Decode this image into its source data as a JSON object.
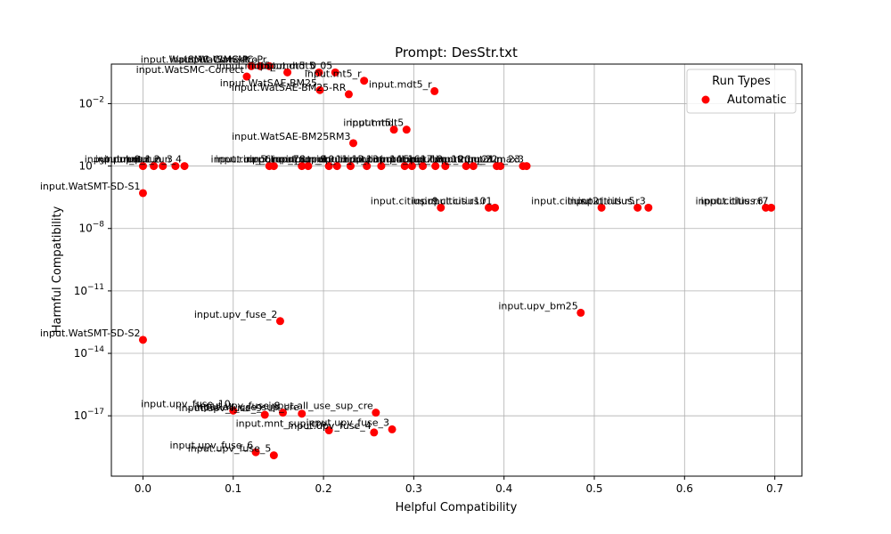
{
  "chart_data": {
    "type": "scatter",
    "title": "Prompt: DesStr.txt",
    "xlabel": "Helpful Compatibility",
    "ylabel": "Harmful Compatibility",
    "yscale": "log",
    "xlim": [
      -0.035,
      0.73
    ],
    "ylim_exp": [
      -19.9,
      -0.1
    ],
    "grid": true,
    "legend": {
      "title": "Run Types",
      "location": "top-right",
      "entries": [
        {
          "name": "Automatic",
          "color": "#ff0000"
        }
      ]
    },
    "colors": {
      "marker": "#ff0000",
      "grid": "#b0b0b0"
    },
    "x_ticks": [
      {
        "value": 0.0,
        "label": "0.0"
      },
      {
        "value": 0.1,
        "label": "0.1"
      },
      {
        "value": 0.2,
        "label": "0.2"
      },
      {
        "value": 0.3,
        "label": "0.3"
      },
      {
        "value": 0.4,
        "label": "0.4"
      },
      {
        "value": 0.5,
        "label": "0.5"
      },
      {
        "value": 0.6,
        "label": "0.6"
      },
      {
        "value": 0.7,
        "label": "0.7"
      }
    ],
    "y_ticks": [
      {
        "exp": -2,
        "base": "10",
        "sup": "−2"
      },
      {
        "exp": -5,
        "base": "10",
        "sup": "−5"
      },
      {
        "exp": -8,
        "base": "10",
        "sup": "−8"
      },
      {
        "exp": -11,
        "base": "10",
        "sup": "−11"
      },
      {
        "exp": -14,
        "base": "10",
        "sup": "−14"
      },
      {
        "exp": -17,
        "base": "10",
        "sup": "−17"
      }
    ],
    "points": [
      {
        "x": 0.12,
        "exp": -0.2,
        "label": "input.WatSMC-Correct"
      },
      {
        "x": 0.13,
        "exp": -0.2,
        "label": "input.WatSMC-Pro"
      },
      {
        "x": 0.14,
        "exp": -0.2,
        "label": "input.WatSMC-Pr"
      },
      {
        "x": 0.115,
        "exp": -0.7,
        "label": "input.WatSMC-Correct"
      },
      {
        "x": 0.16,
        "exp": -0.5,
        "label": "input.mdt5_..."
      },
      {
        "x": 0.195,
        "exp": -0.5,
        "label": "input.mdt5_0"
      },
      {
        "x": 0.213,
        "exp": -0.5,
        "label": "input.mdt5_05"
      },
      {
        "x": 0.245,
        "exp": -0.9,
        "label": "input.mt5_r"
      },
      {
        "x": 0.196,
        "exp": -1.35,
        "label": "input.WatSAE-BM25"
      },
      {
        "x": 0.228,
        "exp": -1.55,
        "label": "input.WatSAE-BM25-RR"
      },
      {
        "x": 0.323,
        "exp": -1.4,
        "label": "input.mdt5_r"
      },
      {
        "x": 0.278,
        "exp": -3.25,
        "label": "input.mt5"
      },
      {
        "x": 0.292,
        "exp": -3.25,
        "label": "input.mdt5"
      },
      {
        "x": 0.233,
        "exp": -3.9,
        "label": "input.WatSAE-BM25RM3"
      },
      {
        "x": 0.0,
        "exp": -5.0,
        "label": "input.run_0"
      },
      {
        "x": 0.012,
        "exp": -5.0,
        "label": "input.run_1"
      },
      {
        "x": 0.022,
        "exp": -5.0,
        "label": "input.run_2"
      },
      {
        "x": 0.036,
        "exp": -5.0,
        "label": "input.run_3"
      },
      {
        "x": 0.046,
        "exp": -5.0,
        "label": "input.run_4"
      },
      {
        "x": 0.14,
        "exp": -5.0,
        "label": "input.run_5"
      },
      {
        "x": 0.145,
        "exp": -5.0,
        "label": "input.run_6"
      },
      {
        "x": 0.176,
        "exp": -5.0,
        "label": "input.run_7"
      },
      {
        "x": 0.183,
        "exp": -5.0,
        "label": "input.run_8"
      },
      {
        "x": 0.206,
        "exp": -5.0,
        "label": "input.run_9"
      },
      {
        "x": 0.215,
        "exp": -5.0,
        "label": "input.run_10"
      },
      {
        "x": 0.23,
        "exp": -5.0,
        "label": "input.run_11"
      },
      {
        "x": 0.248,
        "exp": -5.0,
        "label": "input.run_12"
      },
      {
        "x": 0.264,
        "exp": -5.0,
        "label": "input.run_13"
      },
      {
        "x": 0.29,
        "exp": -5.0,
        "label": "input.run_14"
      },
      {
        "x": 0.298,
        "exp": -5.0,
        "label": "input.run_15"
      },
      {
        "x": 0.31,
        "exp": -5.0,
        "label": "input.run_16"
      },
      {
        "x": 0.324,
        "exp": -5.0,
        "label": "input.run_17"
      },
      {
        "x": 0.335,
        "exp": -5.0,
        "label": "input.run_18"
      },
      {
        "x": 0.358,
        "exp": -5.0,
        "label": "input.run_19"
      },
      {
        "x": 0.366,
        "exp": -5.0,
        "label": "input.run_20"
      },
      {
        "x": 0.392,
        "exp": -5.0,
        "label": "input.run_21"
      },
      {
        "x": 0.396,
        "exp": -5.0,
        "label": "input.run_22"
      },
      {
        "x": 0.421,
        "exp": -5.0,
        "label": "input.run_23"
      },
      {
        "x": 0.425,
        "exp": -5.0,
        "label": "input.max3"
      },
      {
        "x": 0.0,
        "exp": -6.3,
        "label": "input.WatSMT-SD-S1"
      },
      {
        "x": 0.33,
        "exp": -7.0,
        "label": "input.citius.r9"
      },
      {
        "x": 0.383,
        "exp": -7.0,
        "label": "input.citius.r10"
      },
      {
        "x": 0.39,
        "exp": -7.0,
        "label": "input.citius.r1"
      },
      {
        "x": 0.508,
        "exp": -7.0,
        "label": "input.citius.r2"
      },
      {
        "x": 0.548,
        "exp": -7.0,
        "label": "input.citius.r5"
      },
      {
        "x": 0.56,
        "exp": -7.0,
        "label": "input.citius.r3"
      },
      {
        "x": 0.69,
        "exp": -7.0,
        "label": "input.citius.r6"
      },
      {
        "x": 0.696,
        "exp": -7.0,
        "label": "input.citius.r7"
      },
      {
        "x": 0.152,
        "exp": -12.45,
        "label": "input.upv_fuse_2"
      },
      {
        "x": 0.485,
        "exp": -12.05,
        "label": "input.upv_bm25"
      },
      {
        "x": 0.0,
        "exp": -13.35,
        "label": "input.WatSMT-SD-S2"
      },
      {
        "x": 0.1,
        "exp": -16.75,
        "label": "input.upv_fuse_10"
      },
      {
        "x": 0.135,
        "exp": -16.95,
        "label": "input.upv_fuse_9"
      },
      {
        "x": 0.155,
        "exp": -16.85,
        "label": "input.upv_fuse_8"
      },
      {
        "x": 0.176,
        "exp": -16.9,
        "label": "input.all_use_sup_cre"
      },
      {
        "x": 0.258,
        "exp": -16.85,
        "label": "input.all_use_sup_cre"
      },
      {
        "x": 0.206,
        "exp": -17.7,
        "label": "input.mnt_sup_cre"
      },
      {
        "x": 0.256,
        "exp": -17.8,
        "label": "input.upv_fuse_4"
      },
      {
        "x": 0.276,
        "exp": -17.65,
        "label": "input.upv_fuse_3"
      },
      {
        "x": 0.125,
        "exp": -18.75,
        "label": "input.upv_fuse_6"
      },
      {
        "x": 0.145,
        "exp": -18.9,
        "label": "input.upv_fuse_5"
      }
    ]
  }
}
